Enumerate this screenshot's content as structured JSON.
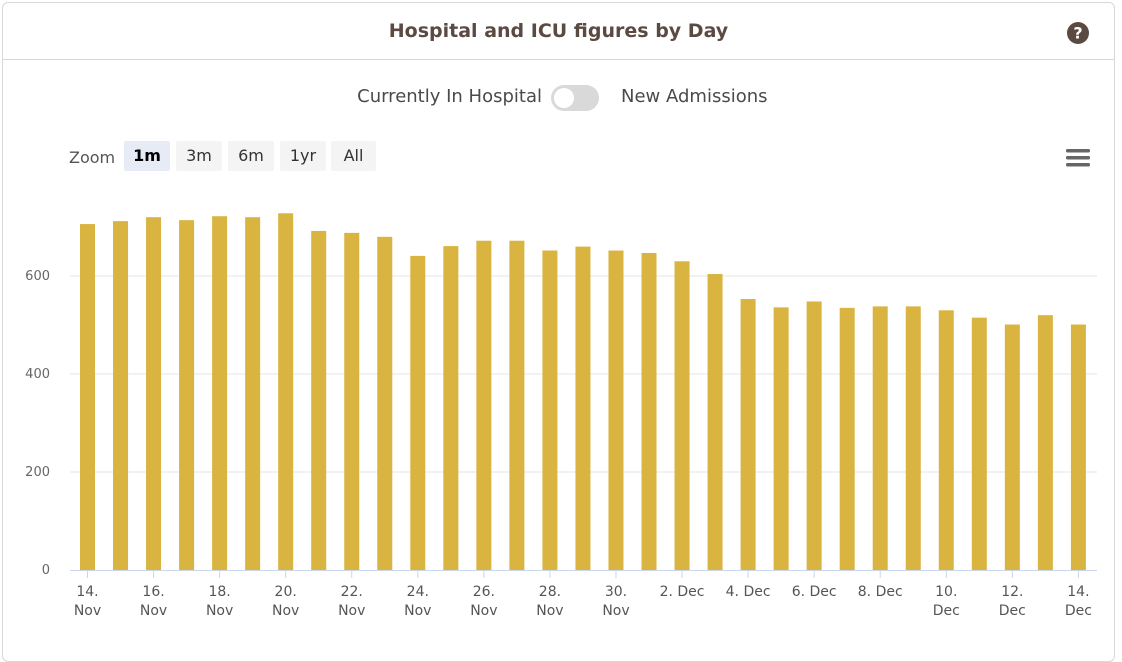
{
  "header": {
    "title": "Hospital and ICU figures by Day",
    "help_icon": "question-circle-icon"
  },
  "toggle": {
    "left_label": "Currently In Hospital",
    "right_label": "New Admissions",
    "state": "off"
  },
  "zoom": {
    "label": "Zoom",
    "options": [
      "1m",
      "3m",
      "6m",
      "1yr",
      "All"
    ],
    "selected": "1m"
  },
  "menu_icon": "hamburger-menu-icon",
  "colors": {
    "bar": "#d9b440",
    "title": "#5a4a42",
    "grid": "#e6e6e6"
  },
  "chart_data": {
    "type": "bar",
    "categories": [
      "14. Nov",
      "15. Nov",
      "16. Nov",
      "17. Nov",
      "18. Nov",
      "19. Nov",
      "20. Nov",
      "21. Nov",
      "22. Nov",
      "23. Nov",
      "24. Nov",
      "25. Nov",
      "26. Nov",
      "27. Nov",
      "28. Nov",
      "29. Nov",
      "30. Nov",
      "1. Dec",
      "2. Dec",
      "3. Dec",
      "4. Dec",
      "5. Dec",
      "6. Dec",
      "7. Dec",
      "8. Dec",
      "9. Dec",
      "10. Dec",
      "11. Dec",
      "12. Dec",
      "13. Dec",
      "14. Dec"
    ],
    "values": [
      706,
      712,
      720,
      714,
      722,
      720,
      728,
      692,
      688,
      680,
      641,
      661,
      672,
      672,
      652,
      660,
      652,
      647,
      630,
      604,
      553,
      536,
      548,
      535,
      538,
      538,
      530,
      515,
      501,
      520,
      501
    ],
    "tick_labels": [
      [
        "14.",
        "Nov"
      ],
      [
        "16.",
        "Nov"
      ],
      [
        "18.",
        "Nov"
      ],
      [
        "20.",
        "Nov"
      ],
      [
        "22.",
        "Nov"
      ],
      [
        "24.",
        "Nov"
      ],
      [
        "26.",
        "Nov"
      ],
      [
        "28.",
        "Nov"
      ],
      [
        "30.",
        "Nov"
      ],
      [
        "2. Dec"
      ],
      [
        "4. Dec"
      ],
      [
        "6. Dec"
      ],
      [
        "8. Dec"
      ],
      [
        "10.",
        "Dec"
      ],
      [
        "12.",
        "Dec"
      ],
      [
        "14.",
        "Dec"
      ]
    ],
    "ylim": [
      0,
      800
    ],
    "yticks": [
      0,
      200,
      400,
      600
    ],
    "grid": true,
    "legend": "none",
    "title": "",
    "xlabel": "",
    "ylabel": ""
  }
}
